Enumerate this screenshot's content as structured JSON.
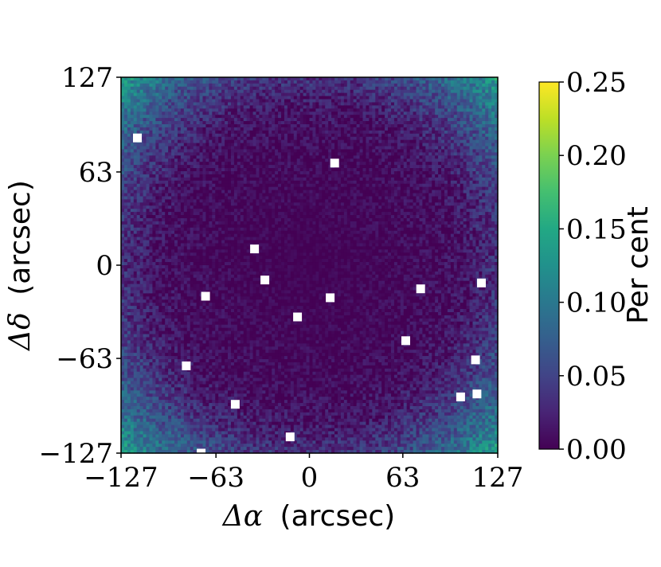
{
  "chart_data": {
    "type": "heatmap",
    "title": "",
    "xlabel_symbol": "Δα",
    "xlabel_unit": "(arcsec)",
    "ylabel_symbol": "Δδ",
    "ylabel_unit": "(arcsec)",
    "xlim": [
      -127,
      127
    ],
    "ylim": [
      -127,
      127
    ],
    "x_ticks": [
      -127,
      -63,
      0,
      63,
      127
    ],
    "y_ticks": [
      -127,
      -63,
      0,
      63,
      127
    ],
    "x_tick_labels": [
      "−127",
      "−63",
      "0",
      "63",
      "127"
    ],
    "y_tick_labels": [
      "−127",
      "−63",
      "0",
      "63",
      "127"
    ],
    "grid": false,
    "colormap": "viridis",
    "colorbar": {
      "label": "Per cent",
      "range": [
        0.0,
        0.25
      ],
      "ticks": [
        0.0,
        0.05,
        0.1,
        0.15,
        0.2,
        0.25
      ],
      "tick_labels": [
        "0.00",
        "0.05",
        "0.10",
        "0.15",
        "0.20",
        "0.25"
      ]
    },
    "grid_bins": 120,
    "value_model": {
      "description_of_pattern": "radial increase from centre toward corners",
      "center_value": 0.0,
      "corner_mean": 0.13,
      "noise_level": 0.04
    },
    "masked_regions": [
      {
        "x": 17,
        "y": 69
      },
      {
        "x": -37,
        "y": 11
      },
      {
        "x": -30,
        "y": -10
      },
      {
        "x": -70,
        "y": -21
      },
      {
        "x": 14,
        "y": -22
      },
      {
        "x": -8,
        "y": -35
      },
      {
        "x": 75,
        "y": -16
      },
      {
        "x": 116,
        "y": -12
      },
      {
        "x": 65,
        "y": -51
      },
      {
        "x": -83,
        "y": -68
      },
      {
        "x": 112,
        "y": -64
      },
      {
        "x": -50,
        "y": -94
      },
      {
        "x": 102,
        "y": -89
      },
      {
        "x": 113,
        "y": -87
      },
      {
        "x": -13,
        "y": -116
      },
      {
        "x": -73,
        "y": -127
      },
      {
        "x": -116,
        "y": 86
      }
    ]
  },
  "colors": {
    "viridis_low": "#440154",
    "viridis_mid": "#21918c",
    "viridis_high": "#fde725",
    "mask": "#ffffff"
  }
}
